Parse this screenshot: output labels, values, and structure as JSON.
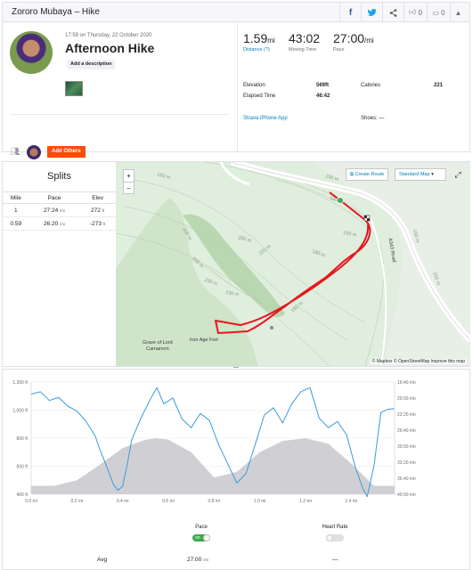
{
  "header": {
    "title": "Zororo Mubaya – Hike",
    "facebook_icon": "f",
    "twitter_icon": "✔",
    "share_icon": "share",
    "kudos_count": "0",
    "comments_count": "0"
  },
  "activity": {
    "date": "17:59 on Thursday, 22 October 2020",
    "title": "Afternoon Hike",
    "add_description": "Add a description",
    "add_others": "Add Others",
    "stats": {
      "distance": {
        "value": "1.59",
        "unit": "mi",
        "label": "Distance (?)"
      },
      "moving_time": {
        "value": "43:02",
        "label": "Moving Time"
      },
      "pace": {
        "value": "27:00",
        "unit": "/mi",
        "label": "Pace"
      }
    },
    "details": {
      "elevation_label": "Elevation",
      "elevation_value": "569ft",
      "calories_label": "Calories",
      "calories_value": "221",
      "elapsed_label": "Elapsed Time",
      "elapsed_value": "46:42"
    },
    "device": "Strava iPhone App",
    "shoes": "Shoes: —"
  },
  "splits": {
    "title": "Splits",
    "columns": [
      "Mile",
      "Pace",
      "Elev"
    ],
    "rows": [
      {
        "mile": "1",
        "pace": "27:24",
        "pace_unit": "/mi",
        "elev": "272",
        "elev_unit": "ft"
      },
      {
        "mile": "0.59",
        "pace": "26:20",
        "pace_unit": "/mi",
        "elev": "-273",
        "elev_unit": "ft"
      }
    ]
  },
  "map": {
    "zoom_in": "+",
    "zoom_out": "−",
    "create_route": "Create Route",
    "map_style": "Standard Map",
    "attribution": "© Mapbox © OpenStreetMap Improve this map",
    "labels": {
      "grave": "Grave of Lord\nCarnarvon",
      "fort": "Iron Age Fort",
      "contours": [
        "150 m",
        "200 m",
        "230 m",
        "230 m",
        "220 m",
        "180 m",
        "150 m",
        "150 m",
        "150 m",
        "150 m",
        "200 m",
        "200 m",
        "160 m",
        "180 m"
      ],
      "road": "A343 Road"
    }
  },
  "chart_data": {
    "type": "area",
    "x_ticks": [
      "0.0 mi",
      "0.2 mi",
      "0.4 mi",
      "0.6 mi",
      "0.8 mi",
      "1.0 mi",
      "1.2 mi",
      "1.4 mi"
    ],
    "y_left_ticks": [
      "1,200 ft",
      "1,000 ft",
      "800 ft",
      "600 ft",
      "400 ft"
    ],
    "y_right_ticks": [
      "16:40 /mi",
      "20:00 /mi",
      "23:20 /mi",
      "26:40 /mi",
      "30:00 /mi",
      "33:20 /mi",
      "36:40 /mi",
      "40:00 /mi"
    ],
    "xlim": [
      0,
      1.59
    ],
    "ylim_left": [
      400,
      1200
    ],
    "series": [
      {
        "name": "Elevation",
        "color": "#c8c8cc",
        "x": [
          0,
          0.1,
          0.2,
          0.3,
          0.4,
          0.5,
          0.55,
          0.6,
          0.7,
          0.8,
          0.9,
          1.0,
          1.1,
          1.2,
          1.3,
          1.4,
          1.5,
          1.59
        ],
        "values": [
          460,
          460,
          500,
          610,
          730,
          790,
          800,
          790,
          700,
          520,
          560,
          700,
          780,
          800,
          760,
          620,
          460,
          460
        ]
      },
      {
        "name": "Pace",
        "color": "#3d9ad9",
        "x": [
          0,
          0.04,
          0.08,
          0.12,
          0.16,
          0.2,
          0.24,
          0.28,
          0.3,
          0.33,
          0.36,
          0.38,
          0.4,
          0.42,
          0.44,
          0.48,
          0.52,
          0.55,
          0.58,
          0.62,
          0.66,
          0.7,
          0.74,
          0.78,
          0.82,
          0.86,
          0.9,
          0.94,
          0.98,
          1.02,
          1.06,
          1.1,
          1.14,
          1.18,
          1.22,
          1.26,
          1.3,
          1.34,
          1.38,
          1.42,
          1.45,
          1.47,
          1.5,
          1.53,
          1.56,
          1.59
        ],
        "values_pace": [
          "19:10",
          "18:40",
          "20:30",
          "19:50",
          "21:40",
          "22:40",
          "24:50",
          "27:50",
          "30:40",
          "34:10",
          "38:00",
          "39:10",
          "38:20",
          "33:50",
          "28:40",
          "24:10",
          "20:20",
          "17:50",
          "21:10",
          "20:00",
          "24:20",
          "26:10",
          "23:10",
          "24:40",
          "29:40",
          "33:40",
          "37:40",
          "35:40",
          "29:40",
          "23:30",
          "22:00",
          "25:10",
          "21:10",
          "18:40",
          "17:50",
          "24:10",
          "26:10",
          "24:50",
          "27:40",
          "34:40",
          "38:40",
          "40:30",
          "34:00",
          "23:00",
          "22:20",
          "22:10"
        ]
      }
    ]
  },
  "legend": {
    "pace_label": "Pace",
    "pace_toggle": "on",
    "hr_label": "Heart Rate",
    "avg_label": "Avg",
    "avg_pace": "27:00",
    "avg_pace_unit": "/mi",
    "avg_hr": "—"
  },
  "colors": {
    "brand": "#fc4c02",
    "link": "#007fb6",
    "route": "#e8161e",
    "pace_line": "#3d9ad9",
    "elevation_fill": "#c8c8cc"
  }
}
